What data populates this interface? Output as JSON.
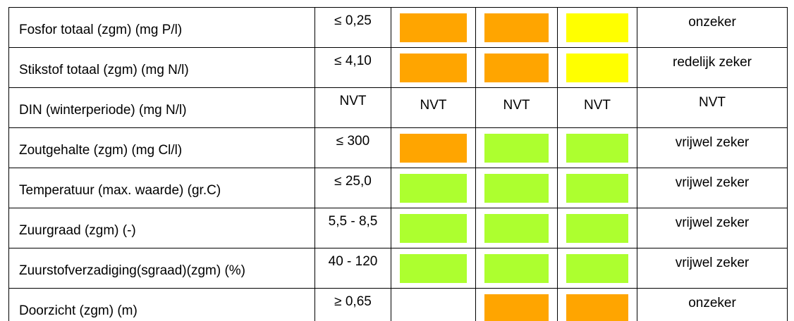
{
  "table": {
    "rows": [
      {
        "label": "Fosfor totaal (zgm) (mg P/l)",
        "norm": "≤ 0,25",
        "cells": [
          {
            "color": "#FFA500"
          },
          {
            "color": "#FFA500"
          },
          {
            "color": "#FFFF00"
          }
        ],
        "certainty": "onzeker"
      },
      {
        "label": "Stikstof totaal (zgm) (mg N/l)",
        "norm": "≤ 4,10",
        "cells": [
          {
            "color": "#FFA500"
          },
          {
            "color": "#FFA500"
          },
          {
            "color": "#FFFF00"
          }
        ],
        "certainty": "redelijk zeker"
      },
      {
        "label": "DIN  (winterperiode) (mg N/l)",
        "norm": "NVT",
        "cells": [
          {
            "text": "NVT"
          },
          {
            "text": "NVT"
          },
          {
            "text": "NVT"
          }
        ],
        "certainty": "NVT"
      },
      {
        "label": "Zoutgehalte (zgm) (mg Cl/l)",
        "norm": "≤ 300",
        "cells": [
          {
            "color": "#FFA500"
          },
          {
            "color": "#ADFF2F"
          },
          {
            "color": "#ADFF2F"
          }
        ],
        "certainty": "vrijwel zeker"
      },
      {
        "label": "Temperatuur (max. waarde) (gr.C)",
        "norm": "≤ 25,0",
        "cells": [
          {
            "color": "#ADFF2F"
          },
          {
            "color": "#ADFF2F"
          },
          {
            "color": "#ADFF2F"
          }
        ],
        "certainty": "vrijwel zeker"
      },
      {
        "label": "Zuurgraad (zgm) (-)",
        "norm": "5,5 - 8,5",
        "cells": [
          {
            "color": "#ADFF2F"
          },
          {
            "color": "#ADFF2F"
          },
          {
            "color": "#ADFF2F"
          }
        ],
        "certainty": "vrijwel zeker"
      },
      {
        "label": "Zuurstofverzadiging(sgraad)(zgm) (%)",
        "norm": "40 - 120",
        "cells": [
          {
            "color": "#ADFF2F"
          },
          {
            "color": "#ADFF2F"
          },
          {
            "color": "#ADFF2F"
          }
        ],
        "certainty": "vrijwel zeker"
      },
      {
        "label": "Doorzicht (zgm) (m)",
        "norm": "≥ 0,65",
        "cells": [
          null,
          {
            "color": "#FFA500"
          },
          {
            "color": "#FFA500"
          }
        ],
        "certainty": "onzeker"
      }
    ]
  }
}
